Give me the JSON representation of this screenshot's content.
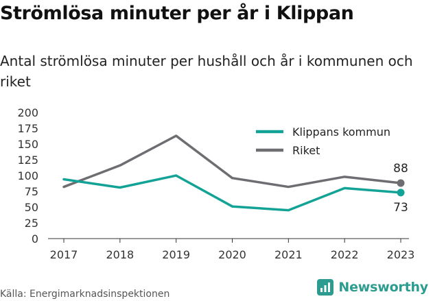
{
  "header": {
    "title": "Strömlösa minuter per år i Klippan",
    "subtitle": "Antal strömlösa minuter per hushåll och år i kommunen och riket"
  },
  "chart_data": {
    "type": "line",
    "x": [
      "2017",
      "2018",
      "2019",
      "2020",
      "2021",
      "2022",
      "2023"
    ],
    "series": [
      {
        "name": "Klippans kommun",
        "color": "#12a396",
        "values": [
          94,
          81,
          100,
          51,
          45,
          80,
          73
        ]
      },
      {
        "name": "Riket",
        "color": "#6e6e72",
        "values": [
          82,
          116,
          163,
          96,
          82,
          98,
          88
        ]
      }
    ],
    "yticks": [
      0,
      25,
      50,
      75,
      100,
      125,
      150,
      175,
      200
    ],
    "ylim": [
      0,
      200
    ],
    "end_labels": [
      "73",
      "88"
    ],
    "legend_position": "top-right",
    "grid": false
  },
  "footer": {
    "source": "Källa: Energimarknadsinspektionen",
    "brand": "Newsworthy",
    "brand_color": "#2b9c8f"
  }
}
